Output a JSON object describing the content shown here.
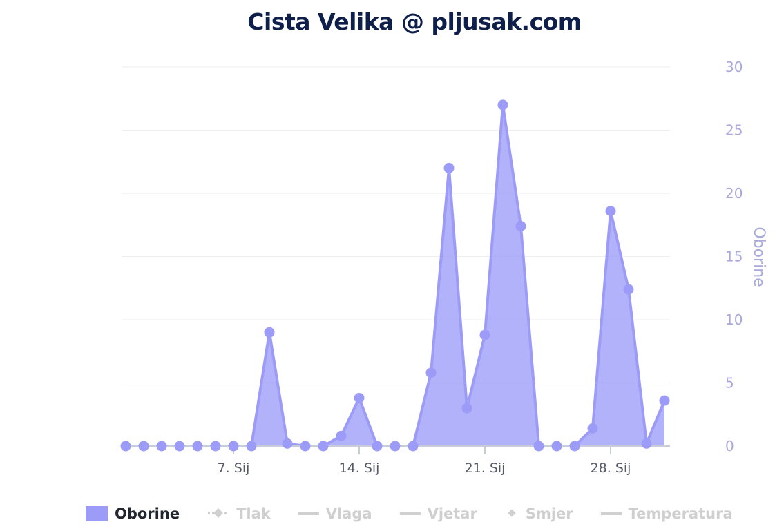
{
  "chart_data": {
    "type": "area",
    "title": "Cista Velika @ pljusak.com",
    "ylabel": "Oborine",
    "ylim": [
      0,
      30
    ],
    "yticks": [
      0,
      5,
      10,
      15,
      20,
      25,
      30
    ],
    "x_tick_labels": [
      {
        "day": 7,
        "label": "7. Sij"
      },
      {
        "day": 14,
        "label": "14. Sij"
      },
      {
        "day": 21,
        "label": "21. Sij"
      },
      {
        "day": 28,
        "label": "28. Sij"
      }
    ],
    "series": [
      {
        "name": "Oborine",
        "color": "#9c9cf8",
        "x": [
          1,
          2,
          3,
          4,
          5,
          6,
          7,
          8,
          9,
          10,
          11,
          12,
          13,
          14,
          15,
          16,
          17,
          18,
          19,
          20,
          21,
          22,
          23,
          24,
          25,
          26,
          27,
          28,
          29,
          30,
          31
        ],
        "values": [
          0,
          0,
          0,
          0,
          0,
          0,
          0,
          0,
          9.0,
          0.2,
          0,
          0,
          0.8,
          3.8,
          0,
          0,
          0,
          5.8,
          22.0,
          3.0,
          8.8,
          27.0,
          17.4,
          0,
          0,
          0,
          1.4,
          18.6,
          12.4,
          0.2,
          3.6
        ]
      }
    ],
    "grid": true,
    "legend_position": "bottom"
  },
  "legend": [
    {
      "label": "Oborine",
      "active": true,
      "symbol": "box",
      "icon": "area-swatch-icon"
    },
    {
      "label": "Tlak",
      "active": false,
      "symbol": "dashed-diamond",
      "icon": "dashed-line-diamond-icon"
    },
    {
      "label": "Vlaga",
      "active": false,
      "symbol": "line",
      "icon": "line-icon"
    },
    {
      "label": "Vjetar",
      "active": false,
      "symbol": "line",
      "icon": "line-icon"
    },
    {
      "label": "Smjer",
      "active": false,
      "symbol": "diamond",
      "icon": "diamond-icon"
    },
    {
      "label": "Temperatura",
      "active": false,
      "symbol": "line",
      "icon": "line-icon"
    }
  ]
}
